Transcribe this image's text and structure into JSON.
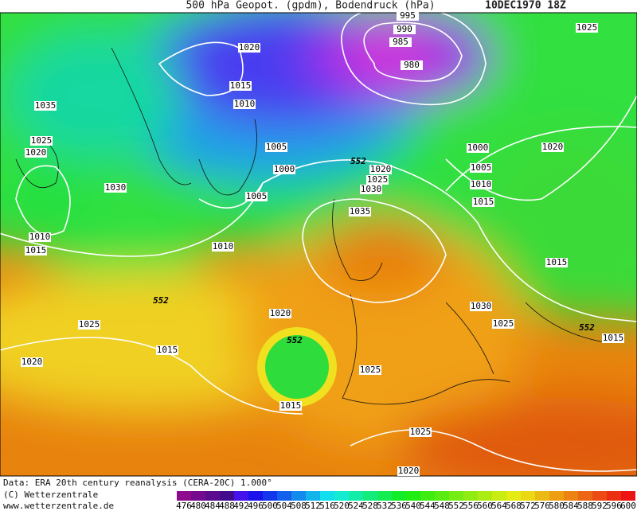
{
  "header": {
    "title": "500 hPa Geopot. (gpdm), Bodendruck (hPa)",
    "date": "10DEC1970 18Z"
  },
  "map": {
    "isobar_labels": [
      995,
      990,
      985,
      980,
      1020,
      1015,
      1010,
      1005,
      1000,
      1005,
      1010,
      1025,
      1035,
      1025,
      1020,
      1030,
      1010,
      1015,
      1025,
      1015,
      1020,
      1020,
      1015,
      1025,
      1025,
      1020,
      1000,
      1005,
      1010,
      1015,
      1020,
      1015,
      1030,
      1025,
      1015,
      1020,
      1025,
      1030,
      1035
    ],
    "height_labels": [
      552,
      552,
      552,
      552
    ]
  },
  "footer": {
    "source": "Data: ERA 20th century reanalysis (CERA-20C) 1.000°",
    "copyright": "(C) Wetterzentrale",
    "url": "www.wetterzentrale.de"
  },
  "colorbar": {
    "levels": [
      476,
      480,
      484,
      488,
      492,
      496,
      500,
      504,
      508,
      512,
      516,
      520,
      524,
      528,
      532,
      536,
      540,
      544,
      548,
      552,
      556,
      560,
      564,
      568,
      572,
      576,
      580,
      584,
      588,
      592,
      596,
      600
    ]
  }
}
